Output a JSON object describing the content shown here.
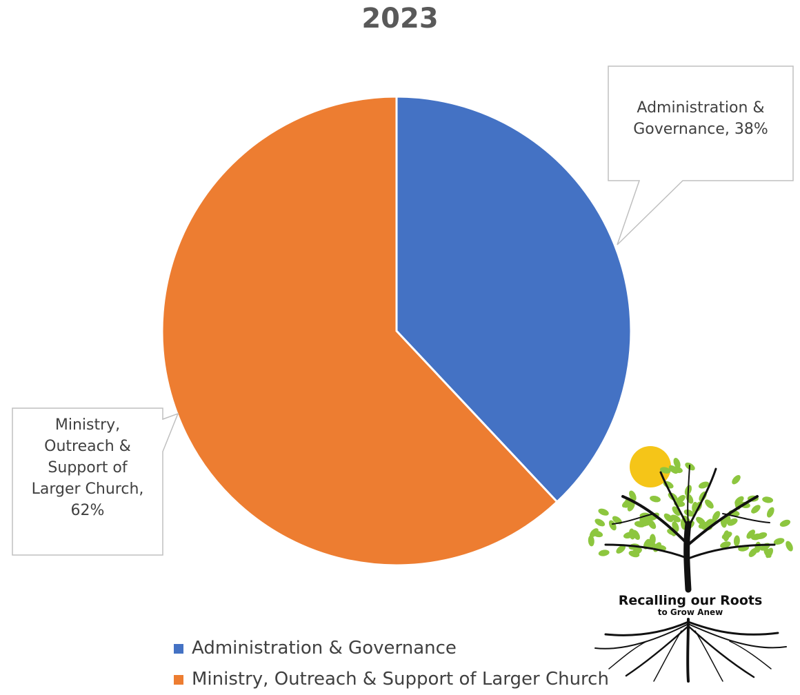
{
  "chart_data": {
    "type": "pie",
    "title": "2023",
    "slices": [
      {
        "name": "Administration & Governance",
        "value": 38,
        "color": "#4472C4"
      },
      {
        "name": "Ministry, Outreach & Support of Larger Church",
        "value": 62,
        "color": "#ED7D31"
      }
    ],
    "data_labels": {
      "admin_line1": "Administration &",
      "admin_line2": "Governance, 38%",
      "ministry_line1": "Ministry,",
      "ministry_line2": "Outreach &",
      "ministry_line3": "Support of",
      "ministry_line4": "Larger Church,",
      "ministry_line5": "62%"
    },
    "legend": {
      "placement": "bottom",
      "entries": [
        "Administration & Governance",
        "Ministry, Outreach & Support of Larger Church"
      ]
    }
  },
  "logo": {
    "line1": "Recalling our Roots",
    "line2": "to Grow Anew",
    "icon": "tree-with-roots-logo",
    "leaf_color": "#8DC63F",
    "sun_color": "#F5C518"
  }
}
